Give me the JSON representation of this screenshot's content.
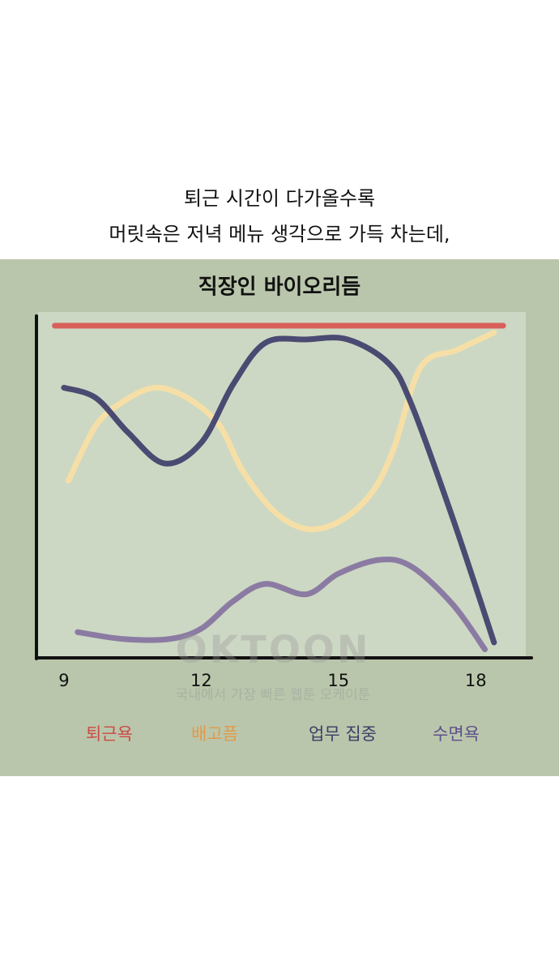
{
  "caption": [
    "퇴근 시간이 다가올수록",
    "머릿속은 저녁 메뉴 생각으로 가득 차는데,"
  ],
  "watermark": {
    "logo": "OKTOON",
    "tagline": "국내에서 가장 빠른 웹툰 오케이툰"
  },
  "chart_data": {
    "type": "line",
    "title": "직장인 바이오리듬",
    "xlim": [
      8.4,
      19.2
    ],
    "xticks": [
      9,
      12,
      15,
      18
    ],
    "ylim": [
      0,
      100
    ],
    "series": [
      {
        "name": "퇴근욕",
        "color": "#d9605a",
        "legend_color": "#cf4a44",
        "x": [
          8.8,
          18.6
        ],
        "values": [
          96,
          96
        ]
      },
      {
        "name": "배고픔",
        "color": "#f6dfa6",
        "legend_color": "#e29a4a",
        "x": [
          9.1,
          9.7,
          10.3,
          11,
          11.7,
          12.4,
          12.9,
          13.6,
          14.3,
          15,
          15.7,
          16.2,
          16.8,
          17.6,
          18.4
        ],
        "values": [
          51,
          67,
          74,
          78,
          75,
          67,
          54,
          42,
          37,
          39,
          47,
          60,
          84,
          89,
          94
        ]
      },
      {
        "name": "업무 집중",
        "color": "#4a4a72",
        "legend_color": "#3c3c66",
        "x": [
          9,
          9.7,
          10.4,
          11.2,
          12,
          12.7,
          13.4,
          14.3,
          15.2,
          16.1,
          16.6,
          17.5,
          18.4
        ],
        "values": [
          78,
          75,
          65,
          56,
          62,
          79,
          91,
          92,
          92,
          85,
          73,
          40,
          4
        ]
      },
      {
        "name": "수면욕",
        "color": "#8b7ba3",
        "legend_color": "#5e4f8c",
        "x": [
          9.3,
          10.3,
          11.3,
          12,
          12.7,
          13.4,
          14.3,
          15,
          15.9,
          16.6,
          17.5,
          18.2
        ],
        "values": [
          7,
          5,
          5,
          8,
          16,
          21,
          18,
          24,
          28,
          26,
          15,
          2
        ]
      }
    ]
  }
}
